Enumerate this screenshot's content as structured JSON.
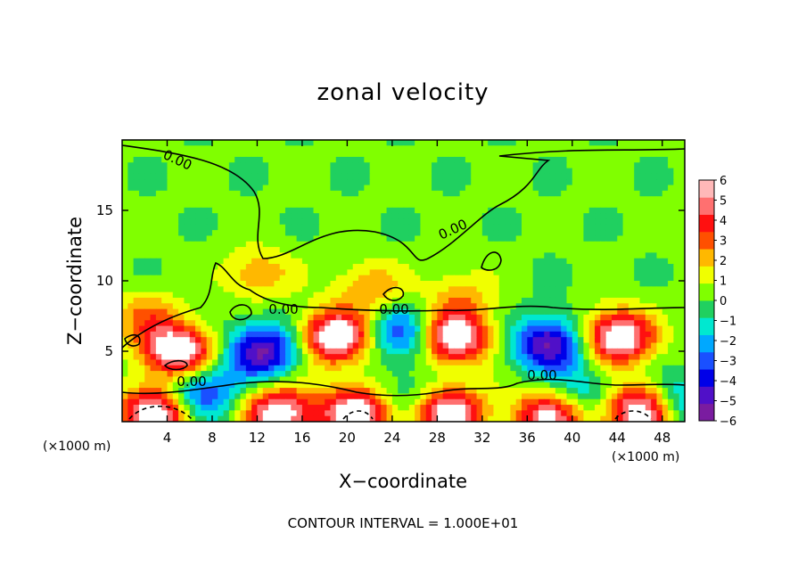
{
  "chart_data": {
    "type": "heatmap",
    "title": "zonal velocity",
    "xlabel": "X−coordinate",
    "ylabel": "Z−coordinate",
    "x_unit_label_left": "(×1000 m)",
    "x_unit_label_right": "(×1000 m)",
    "xlim": [
      0,
      50
    ],
    "ylim": [
      0,
      20
    ],
    "x_ticks": [
      4,
      8,
      12,
      16,
      20,
      24,
      28,
      32,
      36,
      40,
      44,
      48
    ],
    "y_ticks": [
      5,
      10,
      15
    ],
    "colorbar": {
      "ticks": [
        6,
        5,
        4,
        3,
        2,
        1,
        0,
        -1,
        -2,
        -3,
        -4,
        -5,
        -6
      ],
      "tick_labels": [
        "6",
        "5",
        "4",
        "3",
        "2",
        "1",
        "0",
        "−1",
        "−2",
        "−3",
        "−4",
        "−5",
        "−6"
      ],
      "colors": [
        "#7a1ca0",
        "#5010c8",
        "#0000e8",
        "#1a50ff",
        "#00a8ff",
        "#00e8d0",
        "#20d060",
        "#80ff00",
        "#f0ff00",
        "#ffb800",
        "#ff5000",
        "#ff1010",
        "#ff7070",
        "#ffb8b8"
      ]
    },
    "contour_labels": [
      "0.00",
      "0.00",
      "0.00",
      "0.00",
      "0.00",
      "0.00"
    ],
    "footnote": "CONTOUR INTERVAL = 1.000E+01",
    "field_features": [
      {
        "x": 5,
        "z": 5.0,
        "v": 7
      },
      {
        "x": 19,
        "z": 6.0,
        "v": 7
      },
      {
        "x": 29.5,
        "z": 6.0,
        "v": 7
      },
      {
        "x": 44,
        "z": 6.0,
        "v": 7
      },
      {
        "x": 3,
        "z": 0.6,
        "v": 7
      },
      {
        "x": 14,
        "z": 0.6,
        "v": 6.5
      },
      {
        "x": 21,
        "z": 0.6,
        "v": 7
      },
      {
        "x": 29,
        "z": 0.6,
        "v": 6.5
      },
      {
        "x": 38,
        "z": 0.4,
        "v": 6
      },
      {
        "x": 46,
        "z": 0.8,
        "v": 7
      },
      {
        "x": 12.5,
        "z": 5.0,
        "v": -6
      },
      {
        "x": 7,
        "z": 2.0,
        "v": -4.5
      },
      {
        "x": 25,
        "z": 6.3,
        "v": -4
      },
      {
        "x": 38,
        "z": 5.5,
        "v": -6
      },
      {
        "x": 25,
        "z": 1.5,
        "v": -2
      },
      {
        "x": 41,
        "z": 2.0,
        "v": -2.5
      },
      {
        "x": 49.5,
        "z": 1.5,
        "v": -3
      },
      {
        "x": 12,
        "z": 10.5,
        "v": 2.5
      },
      {
        "x": 22,
        "z": 9.5,
        "v": 2.5
      },
      {
        "x": 30,
        "z": 9.0,
        "v": 2
      },
      {
        "x": 2,
        "z": 7.5,
        "v": 2.5
      }
    ]
  }
}
